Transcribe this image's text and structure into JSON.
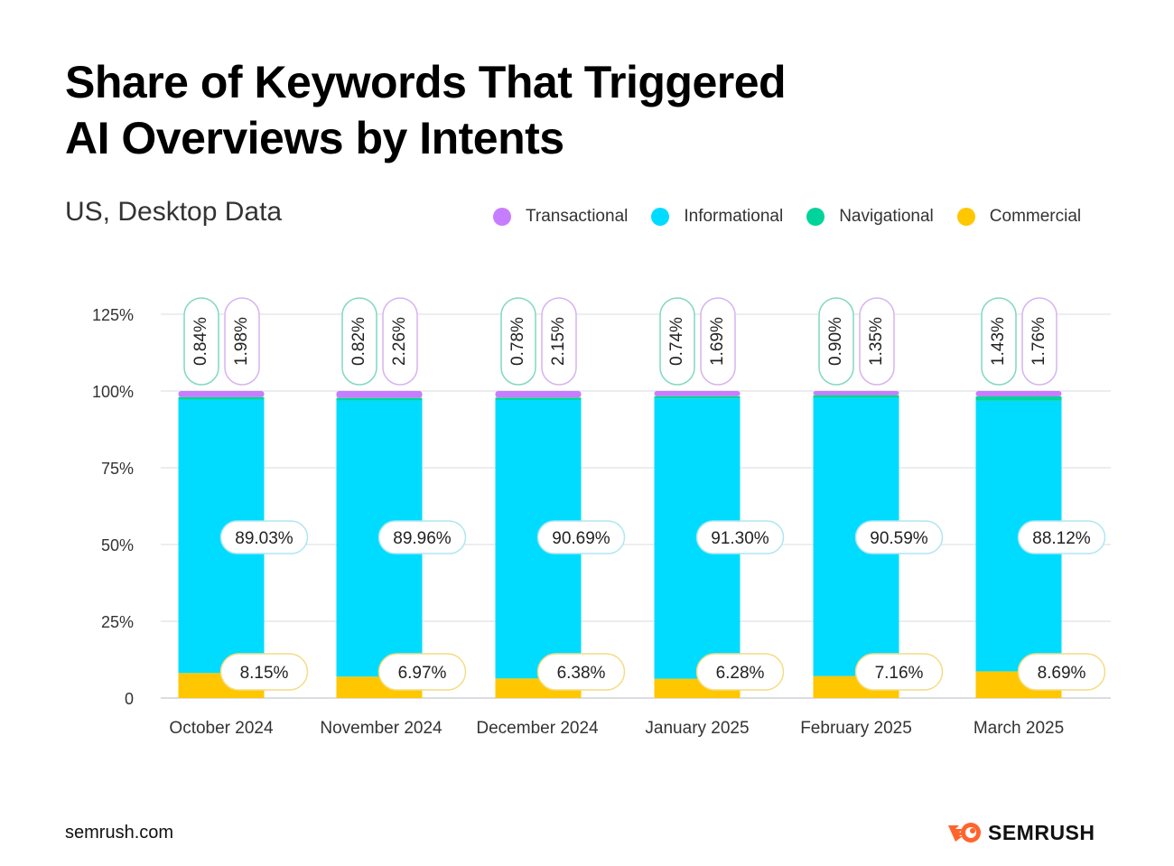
{
  "header": {
    "title_line1": "Share of Keywords That Triggered",
    "title_line2": "AI Overviews by Intents",
    "subtitle": "US, Desktop Data"
  },
  "legend": [
    {
      "label": "Transactional",
      "color": "#c77dff",
      "icon": "circle-icon"
    },
    {
      "label": "Informational",
      "color": "#00dcff",
      "icon": "circle-icon"
    },
    {
      "label": "Navigational",
      "color": "#00d39b",
      "icon": "circle-icon"
    },
    {
      "label": "Commercial",
      "color": "#ffc700",
      "icon": "circle-icon"
    }
  ],
  "chart_data": {
    "type": "bar",
    "stacked": true,
    "title": "Share of Keywords That Triggered AI Overviews by Intents",
    "subtitle": "US, Desktop Data",
    "xlabel": "",
    "ylabel": "",
    "ylim": [
      0,
      125
    ],
    "yticks": [
      0,
      25,
      50,
      75,
      100,
      125
    ],
    "ytick_labels": [
      "0",
      "25%",
      "50%",
      "75%",
      "100%",
      "125%"
    ],
    "grid": true,
    "legend_position": "top-right",
    "categories": [
      "October 2024",
      "November 2024",
      "December 2024",
      "January 2025",
      "February 2025",
      "March 2025"
    ],
    "series": [
      {
        "name": "Commercial",
        "color": "#ffc700",
        "values": [
          8.15,
          6.97,
          6.38,
          6.28,
          7.16,
          8.69
        ],
        "labels": [
          "8.15%",
          "6.97%",
          "6.38%",
          "6.28%",
          "7.16%",
          "8.69%"
        ]
      },
      {
        "name": "Informational",
        "color": "#00dcff",
        "values": [
          89.03,
          89.96,
          90.69,
          91.3,
          90.59,
          88.12
        ],
        "labels": [
          "89.03%",
          "89.96%",
          "90.69%",
          "91.30%",
          "90.59%",
          "88.12%"
        ]
      },
      {
        "name": "Navigational",
        "color": "#00d39b",
        "values": [
          0.84,
          0.82,
          0.78,
          0.74,
          0.9,
          1.43
        ],
        "labels": [
          "0.84%",
          "0.82%",
          "0.78%",
          "0.74%",
          "0.90%",
          "1.43%"
        ]
      },
      {
        "name": "Transactional",
        "color": "#c77dff",
        "values": [
          1.98,
          2.26,
          2.15,
          1.69,
          1.35,
          1.76
        ],
        "labels": [
          "1.98%",
          "2.26%",
          "2.15%",
          "1.69%",
          "1.35%",
          "1.76%"
        ]
      }
    ]
  },
  "footer": {
    "url": "semrush.com",
    "brand": "SEMRUSH",
    "brand_color": "#ff642d"
  }
}
